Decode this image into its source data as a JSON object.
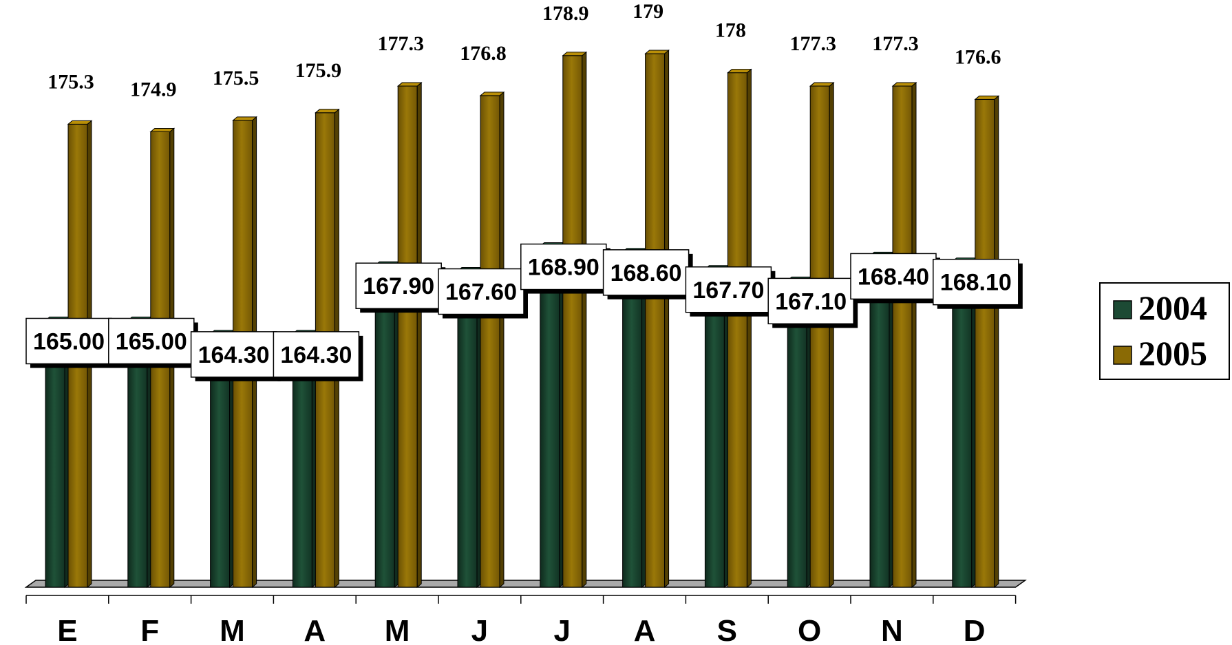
{
  "chart_data": {
    "type": "bar",
    "title": "",
    "xlabel": "",
    "ylabel": "",
    "categories": [
      "E",
      "F",
      "M",
      "A",
      "M",
      "J",
      "J",
      "A",
      "S",
      "O",
      "N",
      "D"
    ],
    "series": [
      {
        "name": "2004",
        "color": "#1c4a34",
        "values": [
          165.0,
          165.0,
          164.3,
          164.3,
          167.9,
          167.6,
          168.9,
          168.6,
          167.7,
          167.1,
          168.4,
          168.1
        ],
        "labels": [
          "165.00",
          "165.00",
          "164.30",
          "164.30",
          "167.90",
          "167.60",
          "168.90",
          "168.60",
          "167.70",
          "167.10",
          "168.40",
          "168.10"
        ]
      },
      {
        "name": "2005",
        "color": "#8a6a05",
        "values": [
          175.3,
          174.9,
          175.5,
          175.9,
          177.3,
          176.8,
          178.9,
          179,
          178,
          177.3,
          177.3,
          176.6
        ],
        "labels": [
          "175.3",
          "174.9",
          "175.5",
          "175.9",
          "177.3",
          "176.8",
          "178.9",
          "179",
          "178",
          "177.3",
          "177.3",
          "176.6"
        ]
      }
    ],
    "ylim": [
      151,
      179
    ],
    "grid": false,
    "legend_position": "right",
    "three_d": true
  }
}
